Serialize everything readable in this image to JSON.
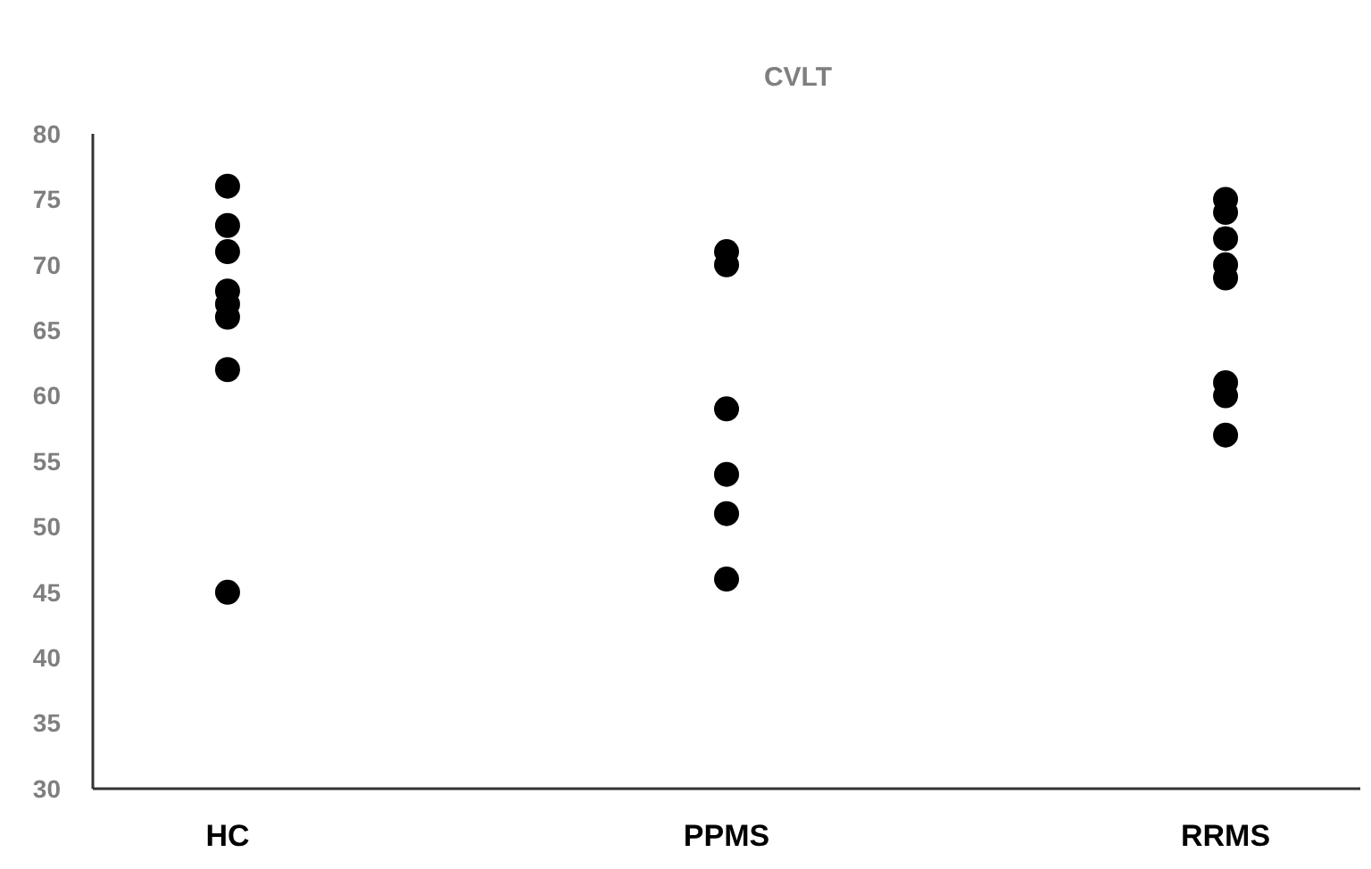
{
  "chart_data": {
    "type": "scatter",
    "title": "CVLT",
    "categories": [
      "HC",
      "PPMS",
      "RRMS"
    ],
    "ylim": [
      30,
      80
    ],
    "yticks": [
      30,
      35,
      40,
      45,
      50,
      55,
      60,
      65,
      70,
      75,
      80
    ],
    "marker": "circle",
    "series": [
      {
        "color": "#000000",
        "x": [
          "HC",
          "HC",
          "HC",
          "HC",
          "HC",
          "HC",
          "HC",
          "HC",
          "PPMS",
          "PPMS",
          "PPMS",
          "PPMS",
          "PPMS",
          "PPMS",
          "RRMS",
          "RRMS",
          "RRMS",
          "RRMS",
          "RRMS",
          "RRMS",
          "RRMS",
          "RRMS"
        ],
        "values": [
          71,
          76,
          73,
          68,
          66,
          67,
          62,
          45,
          70,
          71,
          59,
          54,
          51,
          46,
          72,
          75,
          74,
          70,
          69,
          61,
          60,
          57
        ]
      }
    ]
  }
}
